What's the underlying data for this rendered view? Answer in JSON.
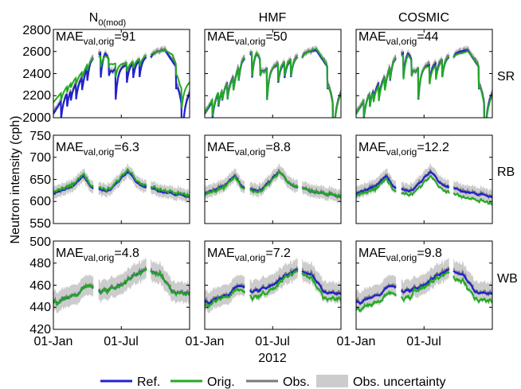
{
  "figure": {
    "ylabel": "Neutron intensity (cph)",
    "year_label": "2012",
    "x_ticks": [
      "01-Jan",
      "01-Jul"
    ],
    "mae_label": "MAE",
    "mae_subscript": "val,orig"
  },
  "columns": [
    {
      "title": "N",
      "title_sub": "0(mod)"
    },
    {
      "title": "HMF",
      "title_sub": ""
    },
    {
      "title": "COSMIC",
      "title_sub": ""
    }
  ],
  "rows": [
    {
      "site": "SR",
      "ylim": [
        2000,
        2800
      ],
      "yticks": [
        "2000",
        "2200",
        "2400",
        "2600",
        "2800"
      ]
    },
    {
      "site": "RB",
      "ylim": [
        550,
        750
      ],
      "yticks": [
        "550",
        "600",
        "650",
        "700",
        "750"
      ]
    },
    {
      "site": "WB",
      "ylim": [
        420,
        500
      ],
      "yticks": [
        "420",
        "440",
        "460",
        "480",
        "500"
      ]
    }
  ],
  "mae_values": [
    [
      "=91",
      "=50",
      "=44"
    ],
    [
      "=6.3",
      "=8.8",
      "=12.2"
    ],
    [
      "=4.8",
      "=7.2",
      "=9.8"
    ]
  ],
  "legend": [
    {
      "key": "ref",
      "label": "Ref.",
      "color": "#2222cc",
      "kind": "line"
    },
    {
      "key": "orig",
      "label": "Orig.",
      "color": "#22aa22",
      "kind": "line"
    },
    {
      "key": "obs",
      "label": "Obs.",
      "color": "#7a7a7a",
      "kind": "line"
    },
    {
      "key": "unc",
      "label": "Obs. uncertainty",
      "color": "#cccccc",
      "kind": "patch"
    }
  ],
  "chart_data": {
    "type": "line",
    "x_unit": "day of year 2012",
    "xlim": [
      1,
      366
    ],
    "panels": "3 rows (sites SR, RB, WB) x 3 columns (N0(mod), HMF, COSMIC)",
    "approximate_key_points": {
      "SR": {
        "obs": [
          [
            1,
            2050
          ],
          [
            40,
            2250
          ],
          [
            80,
            2400
          ],
          [
            100,
            2550
          ],
          [
            140,
            2620
          ],
          [
            160,
            2450
          ],
          [
            200,
            2500
          ],
          [
            240,
            2560
          ],
          [
            270,
            2600
          ],
          [
            300,
            2620
          ],
          [
            330,
            2480
          ],
          [
            345,
            2150
          ],
          [
            366,
            2250
          ]
        ],
        "orig_N0mod": [
          [
            1,
            2200
          ],
          [
            60,
            2380
          ],
          [
            100,
            2500
          ],
          [
            150,
            2520
          ],
          [
            200,
            2480
          ],
          [
            260,
            2560
          ],
          [
            320,
            2600
          ],
          [
            340,
            2350
          ],
          [
            366,
            2380
          ]
        ]
      },
      "RB": {
        "obs": [
          [
            1,
            620
          ],
          [
            60,
            640
          ],
          [
            80,
            660
          ],
          [
            100,
            635
          ],
          [
            150,
            625
          ],
          [
            180,
            650
          ],
          [
            200,
            670
          ],
          [
            230,
            640
          ],
          [
            280,
            625
          ],
          [
            320,
            620
          ],
          [
            366,
            610
          ]
        ]
      },
      "WB": {
        "obs": [
          [
            1,
            445
          ],
          [
            60,
            452
          ],
          [
            90,
            460
          ],
          [
            130,
            455
          ],
          [
            180,
            460
          ],
          [
            220,
            470
          ],
          [
            260,
            475
          ],
          [
            290,
            470
          ],
          [
            320,
            455
          ],
          [
            366,
            452
          ]
        ]
      }
    }
  }
}
